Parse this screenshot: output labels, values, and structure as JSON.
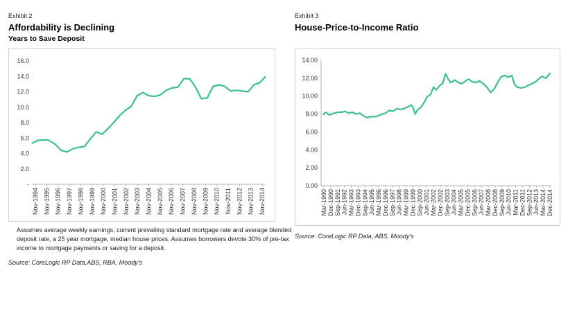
{
  "left": {
    "exhibit": "Exhibit 2",
    "title": "Affordability is Declining",
    "subtitle": "Years to Save Deposit",
    "note": "Assumes average weekly earnings, current prevailing standard mortgage rate and average blended deposit rate, a 25 year mortgage, median house prices. Assumes borrowers devote 30% of pre-tax income to mortgage payments or saving for a deposit.",
    "source": "Source: CoreLogic RP Data,ABS, RBA, Moody's"
  },
  "right": {
    "exhibit": "Exhibit 3",
    "title": "House-Price-to-Income Ratio",
    "source": "Source: CoreLogic RP Data, ABS, Moody's"
  },
  "colors": {
    "line": "#3cbf8a",
    "frame": "#d0d0d0",
    "text": "#222222"
  },
  "chart_data": [
    {
      "type": "line",
      "title": "Affordability is Declining",
      "subtitle": "Years to Save Deposit",
      "ylim": [
        0,
        16
      ],
      "y_ticks": [
        "-",
        "2.0",
        "4.0",
        "6.0",
        "8.0",
        "10.0",
        "12.0",
        "14.0",
        "16.0"
      ],
      "x_labels": [
        "Nov-1994",
        "Nov-1995",
        "Nov-1996",
        "Nov-1997",
        "Nov-1998",
        "Nov-1999",
        "Nov-2000",
        "Nov-2001",
        "Nov-2002",
        "Nov-2003",
        "Nov-2004",
        "Nov-2005",
        "Nov-2006",
        "Nov-2007",
        "Nov-2008",
        "Nov-2009",
        "Nov-2010",
        "Nov-2011",
        "Nov-2012",
        "Nov-2013",
        "Nov-2014"
      ],
      "x": [
        1994.9,
        1995.4,
        1995.9,
        1996.3,
        1996.9,
        1997.4,
        1997.9,
        1998.4,
        1998.9,
        1999.4,
        1999.9,
        2000.4,
        2000.9,
        2001.4,
        2001.9,
        2002.4,
        2002.9,
        2003.4,
        2003.9,
        2004.4,
        2004.9,
        2005.4,
        2005.9,
        2006.4,
        2006.9,
        2007.4,
        2007.9,
        2008.4,
        2008.9,
        2009.4,
        2009.9,
        2010.4,
        2010.9,
        2011.4,
        2011.9,
        2012.4,
        2012.9,
        2013.4,
        2013.9,
        2014.4,
        2014.9
      ],
      "series": [
        {
          "values": [
            5.3,
            5.7,
            5.75,
            5.75,
            5.2,
            4.4,
            4.2,
            4.6,
            4.8,
            4.9,
            5.9,
            6.8,
            6.5,
            7.2,
            8.0,
            8.9,
            9.6,
            10.1,
            11.5,
            11.9,
            11.5,
            11.4,
            11.6,
            12.2,
            12.5,
            12.6,
            13.7,
            13.7,
            12.6,
            11.1,
            11.2,
            12.7,
            12.9,
            12.7,
            12.1,
            12.2,
            12.1,
            12.0,
            12.9,
            13.2,
            14.0
          ]
        }
      ]
    },
    {
      "type": "line",
      "title": "House-Price-to-Income Ratio",
      "ylim": [
        0,
        14
      ],
      "y_ticks": [
        "0.00",
        "2.00",
        "4.00",
        "6.00",
        "8.00",
        "10.00",
        "12.00",
        "14.00"
      ],
      "x_labels": [
        "Mar-1990",
        "Dec-1990",
        "Sep-1991",
        "Jun-1992",
        "Mar-1993",
        "Dec-1993",
        "Sep-1994",
        "Jun-1995",
        "Mar-1996",
        "Dec-1996",
        "Sep-1997",
        "Jun-1998",
        "Mar-1999",
        "Dec-1999",
        "Sep-2000",
        "Jun-2001",
        "Mar-2002",
        "Dec-2002",
        "Sep-2003",
        "Jun-2004",
        "Mar-2005",
        "Dec-2005",
        "Sep-2006",
        "Jun-2007",
        "Mar-2008",
        "Dec-2008",
        "Sep-2009",
        "Jun-2010",
        "Mar-2011",
        "Dec-2011",
        "Sep-2012",
        "Jun-2013",
        "Mar-2014",
        "Dec-2014"
      ],
      "x": [
        1990.2,
        1990.5,
        1990.9,
        1991.4,
        1991.8,
        1992.2,
        1992.6,
        1993.0,
        1993.4,
        1993.8,
        1994.2,
        1994.6,
        1995.0,
        1995.4,
        1995.8,
        1996.2,
        1996.6,
        1997.0,
        1997.4,
        1997.8,
        1998.2,
        1998.6,
        1999.0,
        1999.4,
        1999.8,
        2000.0,
        2000.2,
        2000.5,
        2000.8,
        2001.2,
        2001.5,
        2001.9,
        2002.2,
        2002.5,
        2002.9,
        2003.2,
        2003.5,
        2003.8,
        2004.1,
        2004.5,
        2004.9,
        2005.3,
        2005.7,
        2006.0,
        2006.4,
        2006.8,
        2007.2,
        2007.6,
        2008.0,
        2008.4,
        2008.8,
        2009.2,
        2009.6,
        2010.0,
        2010.3,
        2010.7,
        2011.0,
        2011.3,
        2011.7,
        2012.1,
        2012.5,
        2012.9,
        2013.3,
        2013.7,
        2014.0,
        2014.4,
        2014.9
      ],
      "series": [
        {
          "values": [
            7.9,
            8.2,
            7.9,
            8.1,
            8.2,
            8.2,
            8.3,
            8.1,
            8.2,
            8.0,
            8.1,
            7.8,
            7.6,
            7.7,
            7.7,
            7.8,
            8.0,
            8.1,
            8.4,
            8.3,
            8.6,
            8.5,
            8.6,
            8.8,
            9.0,
            8.7,
            8.0,
            8.5,
            8.7,
            9.3,
            9.9,
            10.2,
            11.0,
            10.7,
            11.2,
            11.4,
            12.5,
            11.9,
            11.5,
            11.8,
            11.5,
            11.4,
            11.7,
            11.9,
            11.6,
            11.5,
            11.7,
            11.4,
            11.0,
            10.4,
            10.8,
            11.6,
            12.2,
            12.3,
            12.1,
            12.3,
            11.3,
            11.0,
            10.9,
            11.0,
            11.2,
            11.4,
            11.6,
            12.0,
            12.2,
            12.0,
            12.6
          ]
        }
      ]
    }
  ]
}
